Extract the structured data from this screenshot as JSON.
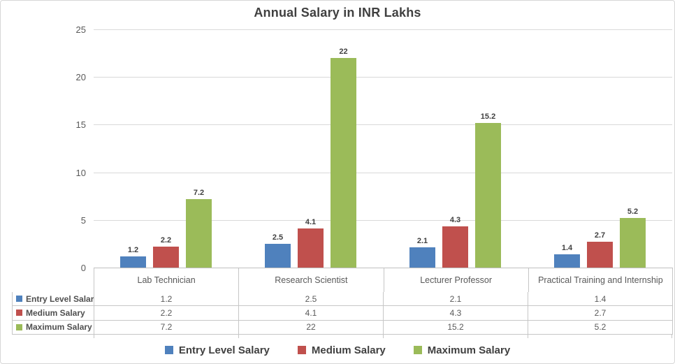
{
  "title": "Annual Salary in INR Lakhs",
  "chart_data": {
    "type": "bar",
    "title": "Annual Salary in INR Lakhs",
    "categories": [
      "Lab Technician",
      "Research Scientist",
      "Lecturer Professor",
      "Practical Training and Internship"
    ],
    "series": [
      {
        "name": "Entry Level Salary",
        "color": "#4F81BD",
        "values": [
          1.2,
          2.5,
          2.1,
          1.4
        ]
      },
      {
        "name": "Medium Salary",
        "color": "#C0504D",
        "values": [
          2.2,
          4.1,
          4.3,
          2.7
        ]
      },
      {
        "name": "Maximum Salary",
        "color": "#9BBB59",
        "values": [
          7.2,
          22,
          15.2,
          5.2
        ]
      }
    ],
    "ylim": [
      0,
      25
    ],
    "yticks": [
      0,
      5,
      10,
      15,
      20,
      25
    ],
    "grid": true,
    "data_labels": true,
    "data_table": true,
    "legend_position": "bottom",
    "xlabel": "",
    "ylabel": ""
  }
}
